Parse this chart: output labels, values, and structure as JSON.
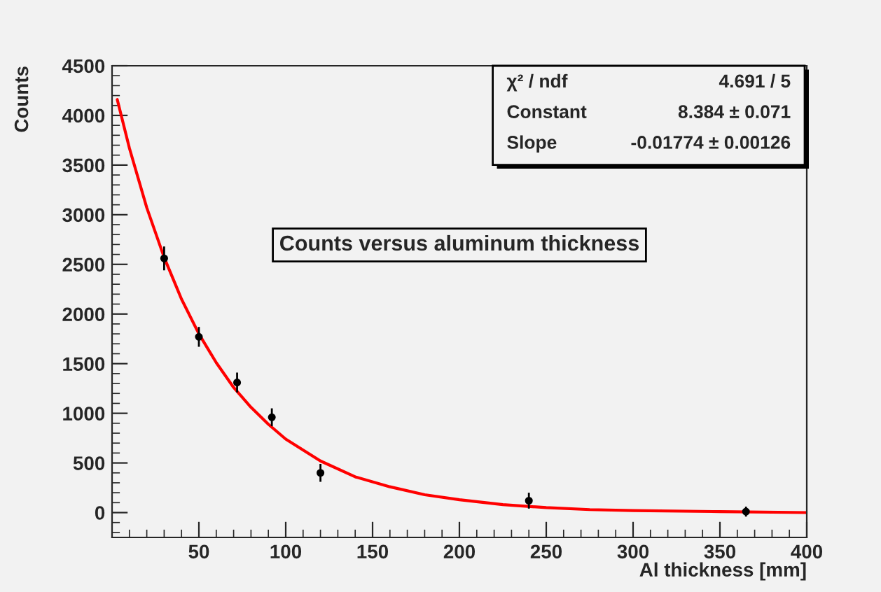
{
  "chart_data": {
    "type": "scatter",
    "title": "Counts versus aluminum thickness",
    "xlabel": "Al thickness [mm]",
    "ylabel": "Counts",
    "xlim": [
      0,
      400
    ],
    "xticks": [
      50,
      100,
      150,
      200,
      250,
      300,
      350,
      400
    ],
    "ylim": [
      -250,
      4500
    ],
    "yticks": [
      0,
      500,
      1000,
      1500,
      2000,
      2500,
      3000,
      3500,
      4000,
      4500
    ],
    "grid": false,
    "legend": false,
    "marker": "circle",
    "series": [
      {
        "color": "#000000",
        "x": [
          30,
          50,
          72,
          92,
          120,
          240,
          365
        ],
        "values": [
          2560,
          1770,
          1310,
          960,
          400,
          120,
          10
        ],
        "errors": [
          120,
          100,
          100,
          90,
          90,
          80,
          50
        ]
      },
      {
        "type": "line",
        "color": "#ff0000",
        "marker": "none",
        "line_style": "solid",
        "x": [
          3,
          10,
          20,
          30,
          40,
          50,
          60,
          70,
          80,
          90,
          100,
          120,
          140,
          160,
          180,
          200,
          225,
          250,
          275,
          300,
          350,
          400
        ],
        "values": [
          4160,
          3670,
          3070,
          2570,
          2150,
          1800,
          1510,
          1260,
          1060,
          890,
          740,
          520,
          360,
          260,
          180,
          130,
          80,
          50,
          30,
          20,
          10,
          0
        ]
      }
    ],
    "annotations": [
      "χ² / ndf",
      "4.691 / 5",
      "Constant",
      "8.384 ± 0.071",
      "Slope",
      "-0.01774 ± 0.00126"
    ]
  }
}
